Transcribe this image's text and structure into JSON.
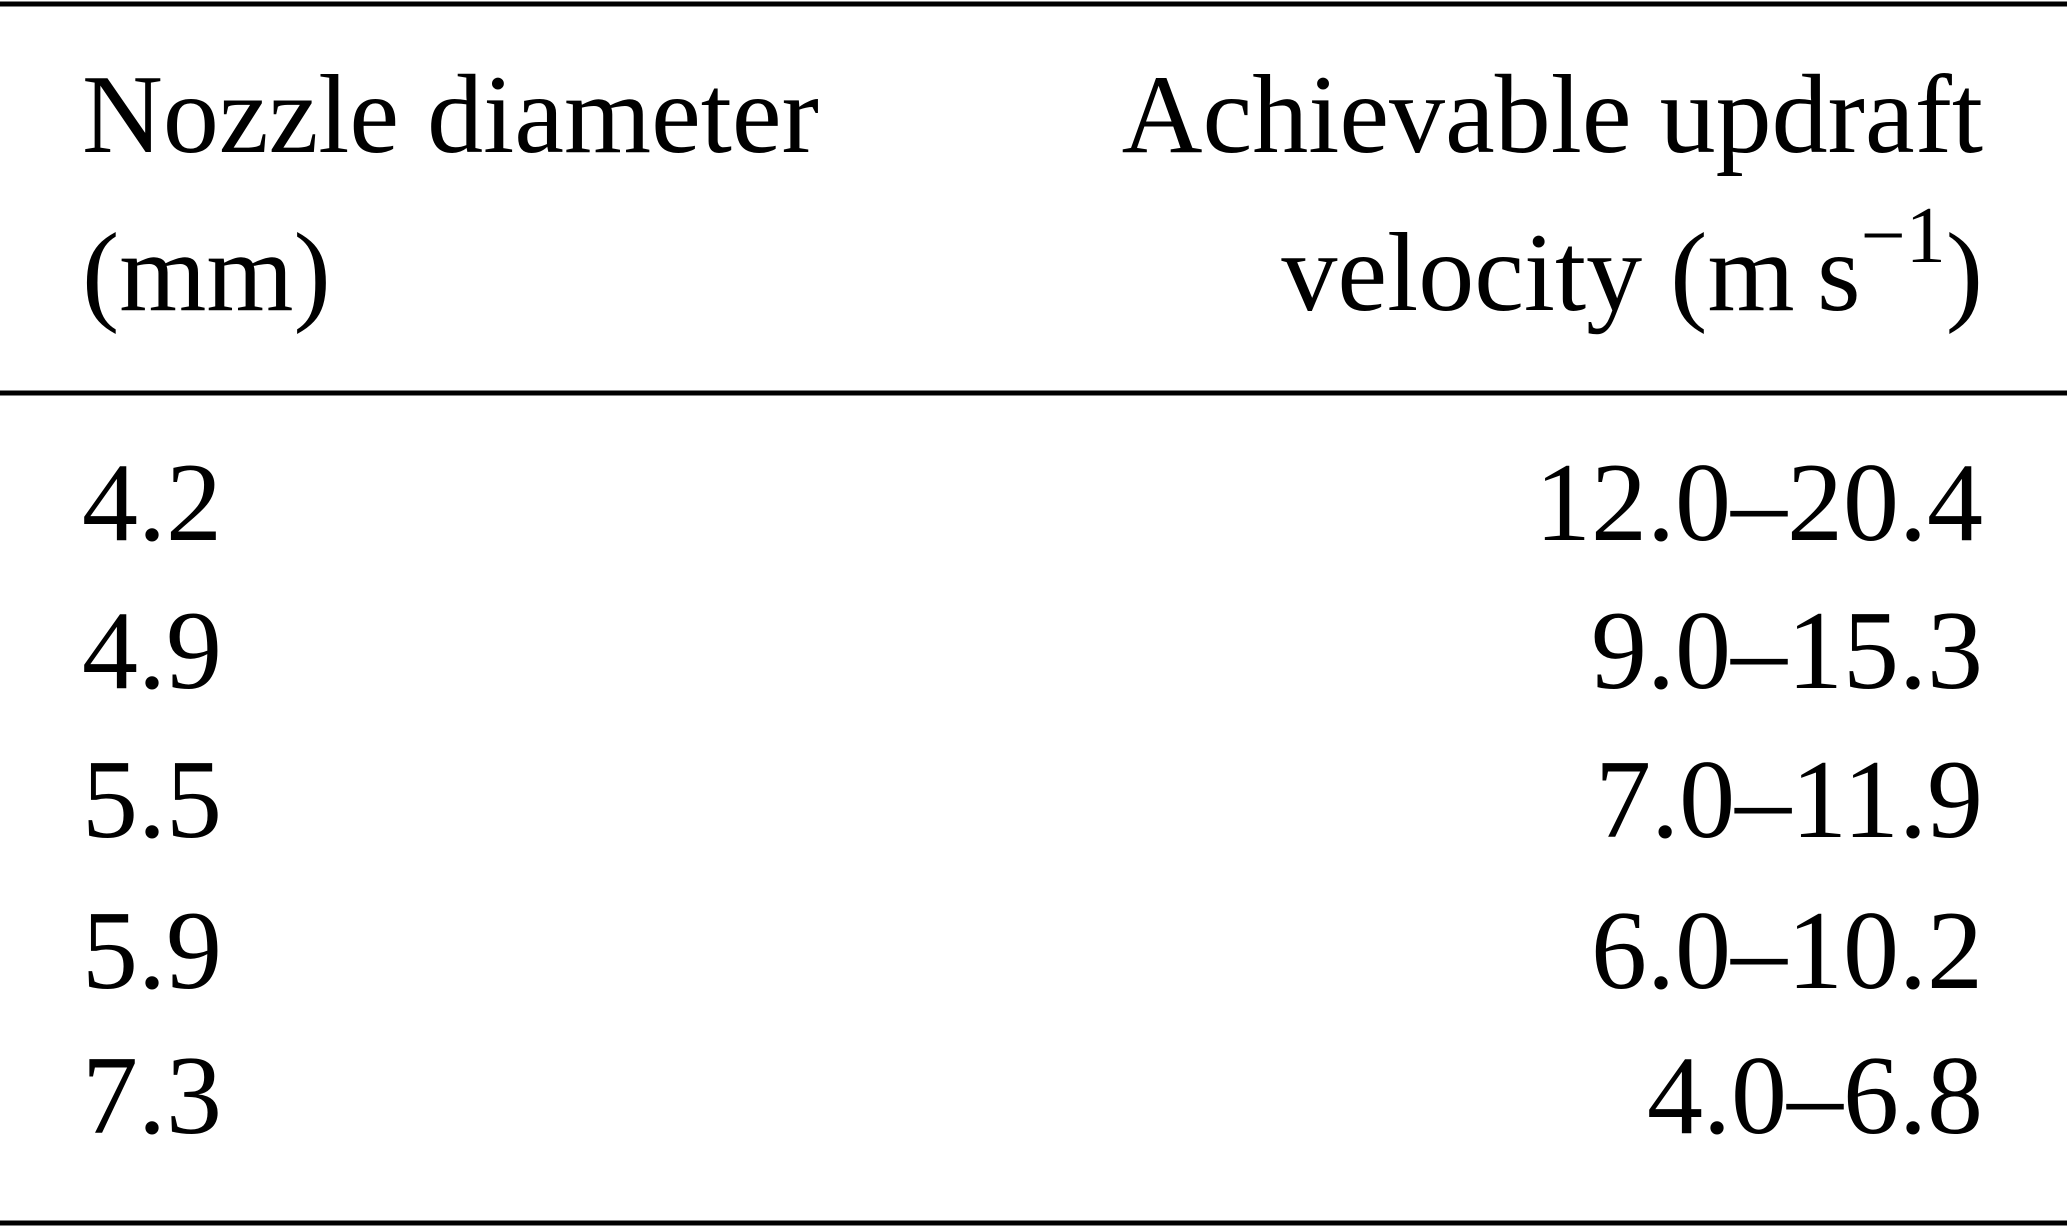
{
  "table": {
    "header": [
      [
        "Nozzle diameter",
        "(mm)"
      ],
      [
        "Achievable updraft",
        {
          "text": "velocity (m s",
          "sup": "−1",
          "after": ")"
        }
      ]
    ],
    "rows": [
      [
        "4.2",
        "12.0–20.4"
      ],
      [
        "4.9",
        "9.0–15.3"
      ],
      [
        "5.5",
        "7.0–11.9"
      ],
      [
        "5.9",
        "6.0–10.2"
      ],
      [
        "7.3",
        "4.0–6.8"
      ]
    ]
  }
}
